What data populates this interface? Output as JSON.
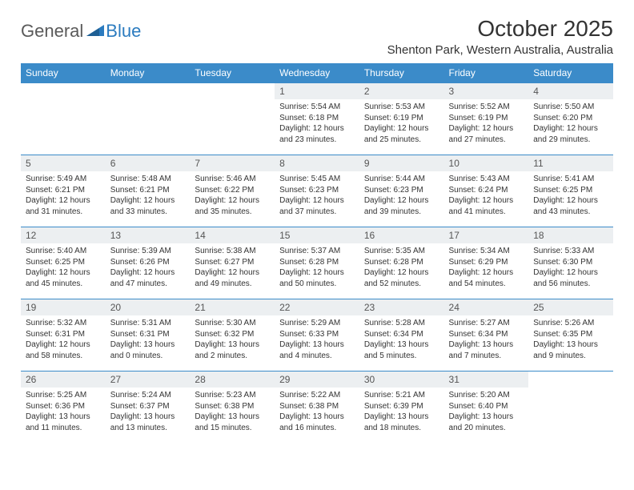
{
  "brand": {
    "text_general": "General",
    "text_blue": "Blue",
    "color_general": "#5a5a5a",
    "color_blue": "#2b7bbf"
  },
  "title": "October 2025",
  "location": "Shenton Park, Western Australia, Australia",
  "day_headers": [
    "Sunday",
    "Monday",
    "Tuesday",
    "Wednesday",
    "Thursday",
    "Friday",
    "Saturday"
  ],
  "colors": {
    "header_bg": "#3b8bc9",
    "header_text": "#ffffff",
    "daynum_bg": "#eceff1",
    "border": "#3b8bc9",
    "body_text": "#333333"
  },
  "weeks": [
    [
      null,
      null,
      null,
      {
        "day": "1",
        "sunrise": "5:54 AM",
        "sunset": "6:18 PM",
        "daylight": "12 hours and 23 minutes."
      },
      {
        "day": "2",
        "sunrise": "5:53 AM",
        "sunset": "6:19 PM",
        "daylight": "12 hours and 25 minutes."
      },
      {
        "day": "3",
        "sunrise": "5:52 AM",
        "sunset": "6:19 PM",
        "daylight": "12 hours and 27 minutes."
      },
      {
        "day": "4",
        "sunrise": "5:50 AM",
        "sunset": "6:20 PM",
        "daylight": "12 hours and 29 minutes."
      }
    ],
    [
      {
        "day": "5",
        "sunrise": "5:49 AM",
        "sunset": "6:21 PM",
        "daylight": "12 hours and 31 minutes."
      },
      {
        "day": "6",
        "sunrise": "5:48 AM",
        "sunset": "6:21 PM",
        "daylight": "12 hours and 33 minutes."
      },
      {
        "day": "7",
        "sunrise": "5:46 AM",
        "sunset": "6:22 PM",
        "daylight": "12 hours and 35 minutes."
      },
      {
        "day": "8",
        "sunrise": "5:45 AM",
        "sunset": "6:23 PM",
        "daylight": "12 hours and 37 minutes."
      },
      {
        "day": "9",
        "sunrise": "5:44 AM",
        "sunset": "6:23 PM",
        "daylight": "12 hours and 39 minutes."
      },
      {
        "day": "10",
        "sunrise": "5:43 AM",
        "sunset": "6:24 PM",
        "daylight": "12 hours and 41 minutes."
      },
      {
        "day": "11",
        "sunrise": "5:41 AM",
        "sunset": "6:25 PM",
        "daylight": "12 hours and 43 minutes."
      }
    ],
    [
      {
        "day": "12",
        "sunrise": "5:40 AM",
        "sunset": "6:25 PM",
        "daylight": "12 hours and 45 minutes."
      },
      {
        "day": "13",
        "sunrise": "5:39 AM",
        "sunset": "6:26 PM",
        "daylight": "12 hours and 47 minutes."
      },
      {
        "day": "14",
        "sunrise": "5:38 AM",
        "sunset": "6:27 PM",
        "daylight": "12 hours and 49 minutes."
      },
      {
        "day": "15",
        "sunrise": "5:37 AM",
        "sunset": "6:28 PM",
        "daylight": "12 hours and 50 minutes."
      },
      {
        "day": "16",
        "sunrise": "5:35 AM",
        "sunset": "6:28 PM",
        "daylight": "12 hours and 52 minutes."
      },
      {
        "day": "17",
        "sunrise": "5:34 AM",
        "sunset": "6:29 PM",
        "daylight": "12 hours and 54 minutes."
      },
      {
        "day": "18",
        "sunrise": "5:33 AM",
        "sunset": "6:30 PM",
        "daylight": "12 hours and 56 minutes."
      }
    ],
    [
      {
        "day": "19",
        "sunrise": "5:32 AM",
        "sunset": "6:31 PM",
        "daylight": "12 hours and 58 minutes."
      },
      {
        "day": "20",
        "sunrise": "5:31 AM",
        "sunset": "6:31 PM",
        "daylight": "13 hours and 0 minutes."
      },
      {
        "day": "21",
        "sunrise": "5:30 AM",
        "sunset": "6:32 PM",
        "daylight": "13 hours and 2 minutes."
      },
      {
        "day": "22",
        "sunrise": "5:29 AM",
        "sunset": "6:33 PM",
        "daylight": "13 hours and 4 minutes."
      },
      {
        "day": "23",
        "sunrise": "5:28 AM",
        "sunset": "6:34 PM",
        "daylight": "13 hours and 5 minutes."
      },
      {
        "day": "24",
        "sunrise": "5:27 AM",
        "sunset": "6:34 PM",
        "daylight": "13 hours and 7 minutes."
      },
      {
        "day": "25",
        "sunrise": "5:26 AM",
        "sunset": "6:35 PM",
        "daylight": "13 hours and 9 minutes."
      }
    ],
    [
      {
        "day": "26",
        "sunrise": "5:25 AM",
        "sunset": "6:36 PM",
        "daylight": "13 hours and 11 minutes."
      },
      {
        "day": "27",
        "sunrise": "5:24 AM",
        "sunset": "6:37 PM",
        "daylight": "13 hours and 13 minutes."
      },
      {
        "day": "28",
        "sunrise": "5:23 AM",
        "sunset": "6:38 PM",
        "daylight": "13 hours and 15 minutes."
      },
      {
        "day": "29",
        "sunrise": "5:22 AM",
        "sunset": "6:38 PM",
        "daylight": "13 hours and 16 minutes."
      },
      {
        "day": "30",
        "sunrise": "5:21 AM",
        "sunset": "6:39 PM",
        "daylight": "13 hours and 18 minutes."
      },
      {
        "day": "31",
        "sunrise": "5:20 AM",
        "sunset": "6:40 PM",
        "daylight": "13 hours and 20 minutes."
      },
      null
    ]
  ],
  "labels": {
    "sunrise_prefix": "Sunrise: ",
    "sunset_prefix": "Sunset: ",
    "daylight_prefix": "Daylight: "
  }
}
